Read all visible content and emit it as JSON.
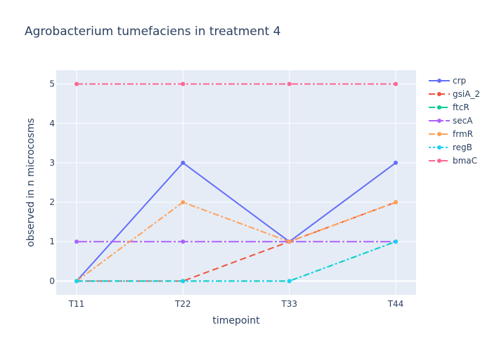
{
  "chart_data": {
    "type": "line",
    "title": "Agrobacterium tumefaciens in treatment 4",
    "xlabel": "timepoint",
    "ylabel": "observed in n microcosms",
    "categories": [
      "T11",
      "T22",
      "T33",
      "T44"
    ],
    "yticks": [
      0,
      1,
      2,
      3,
      4,
      5
    ],
    "ylim": [
      -0.35,
      5.35
    ],
    "grid": true,
    "legend_position": "right",
    "series": [
      {
        "name": "crp",
        "values": [
          0,
          3,
          1,
          3
        ],
        "color": "#636efa",
        "dash": "solid"
      },
      {
        "name": "gsiA_2",
        "values": [
          0,
          0,
          1,
          2
        ],
        "color": "#EF553B",
        "dash": "dash"
      },
      {
        "name": "ftcR",
        "values": [
          0,
          0,
          0,
          1
        ],
        "color": "#00cc96",
        "dash": "dashdot"
      },
      {
        "name": "secA",
        "values": [
          1,
          1,
          1,
          1
        ],
        "color": "#ab63fa",
        "dash": "longdashdot"
      },
      {
        "name": "frmR",
        "values": [
          0,
          2,
          1,
          2
        ],
        "color": "#FFA15A",
        "dash": "dashdot"
      },
      {
        "name": "regB",
        "values": [
          0,
          0,
          0,
          1
        ],
        "color": "#19d3f3",
        "dash": "dot"
      },
      {
        "name": "bmaC",
        "values": [
          5,
          5,
          5,
          5
        ],
        "color": "#FF6692",
        "dash": "dashdot"
      }
    ]
  }
}
